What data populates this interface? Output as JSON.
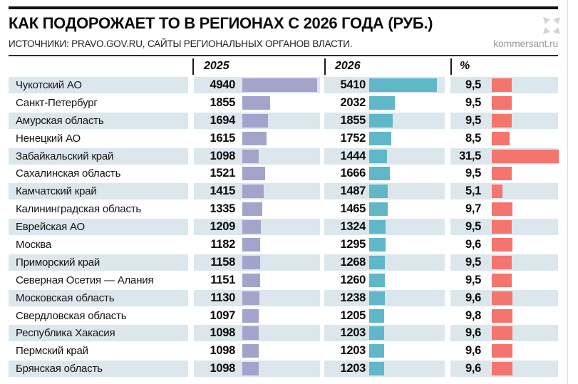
{
  "ui": {
    "title": "КАК ПОДОРОЖАЕТ ТО В РЕГИОНАХ С 2026 ГОДА (РУБ.)",
    "sources": "ИСТОЧНИКИ: PRAVO.GOV.RU, САЙТЫ РЕГИОНАЛЬНЫХ ОРГАНОВ ВЛАСТИ.",
    "brand": "kommersant.ru",
    "columns": [
      "2025",
      "2026",
      "%"
    ]
  },
  "colors": {
    "purple": "#a3a4cb",
    "teal": "#5fb7c7",
    "red": "#f4756e",
    "stripe": "#dbe7ed"
  },
  "rows": [
    {
      "region": "Чукотский АО",
      "y2025": "4940",
      "y2026": "5410",
      "pct": "9,5"
    },
    {
      "region": "Санкт-Петербург",
      "y2025": "1855",
      "y2026": "2032",
      "pct": "9,5"
    },
    {
      "region": "Амурская область",
      "y2025": "1694",
      "y2026": "1855",
      "pct": "9,5"
    },
    {
      "region": "Ненецкий АО",
      "y2025": "1615",
      "y2026": "1752",
      "pct": "8,5"
    },
    {
      "region": "Забайкальский край",
      "y2025": "1098",
      "y2026": "1444",
      "pct": "31,5"
    },
    {
      "region": "Сахалинская область",
      "y2025": "1521",
      "y2026": "1666",
      "pct": "9,5"
    },
    {
      "region": "Камчатский край",
      "y2025": "1415",
      "y2026": "1487",
      "pct": "5,1"
    },
    {
      "region": "Калининградская область",
      "y2025": "1335",
      "y2026": "1465",
      "pct": "9,7"
    },
    {
      "region": "Еврейская АО",
      "y2025": "1209",
      "y2026": "1324",
      "pct": "9,5"
    },
    {
      "region": "Москва",
      "y2025": "1182",
      "y2026": "1295",
      "pct": "9,6"
    },
    {
      "region": "Приморский край",
      "y2025": "1158",
      "y2026": "1268",
      "pct": "9,5"
    },
    {
      "region": "Северная Осетия — Алания",
      "y2025": "1151",
      "y2026": "1260",
      "pct": "9,5"
    },
    {
      "region": "Московская область",
      "y2025": "1130",
      "y2026": "1238",
      "pct": "9,6"
    },
    {
      "region": "Свердловская область",
      "y2025": "1097",
      "y2026": "1205",
      "pct": "9,8"
    },
    {
      "region": "Республика Хакасия",
      "y2025": "1098",
      "y2026": "1203",
      "pct": "9,6"
    },
    {
      "region": "Пермский край",
      "y2025": "1098",
      "y2026": "1203",
      "pct": "9,6"
    },
    {
      "region": "Брянская область",
      "y2025": "1098",
      "y2026": "1203",
      "pct": "9,6"
    }
  ],
  "chart_data": {
    "type": "bar",
    "orientation": "horizontal",
    "title": "КАК ПОДОРОЖАЕТ ТО В РЕГИОНАХ С 2026 ГОДА (РУБ.)",
    "subtitle": "ИСТОЧНИКИ: PRAVO.GOV.RU, САЙТЫ РЕГИОНАЛЬНЫХ ОРГАНОВ ВЛАСТИ.",
    "categories": [
      "Чукотский АО",
      "Санкт-Петербург",
      "Амурская область",
      "Ненецкий АО",
      "Забайкальский край",
      "Сахалинская область",
      "Камчатский край",
      "Калининградская область",
      "Еврейская АО",
      "Москва",
      "Приморский край",
      "Северная Осетия — Алания",
      "Московская область",
      "Свердловская область",
      "Республика Хакасия",
      "Пермский край",
      "Брянская область"
    ],
    "series": [
      {
        "name": "2025",
        "values": [
          4940,
          1855,
          1694,
          1615,
          1098,
          1521,
          1415,
          1335,
          1209,
          1182,
          1158,
          1151,
          1130,
          1097,
          1098,
          1098,
          1098
        ]
      },
      {
        "name": "2026",
        "values": [
          5410,
          2032,
          1855,
          1752,
          1444,
          1666,
          1487,
          1465,
          1324,
          1295,
          1268,
          1260,
          1238,
          1205,
          1203,
          1203,
          1203
        ]
      },
      {
        "name": "%",
        "values": [
          9.5,
          9.5,
          9.5,
          8.5,
          31.5,
          9.5,
          5.1,
          9.7,
          9.5,
          9.6,
          9.5,
          9.5,
          9.6,
          9.8,
          9.6,
          9.6,
          9.6
        ]
      }
    ],
    "legend": false,
    "grid": false,
    "zebra_striping": true
  }
}
